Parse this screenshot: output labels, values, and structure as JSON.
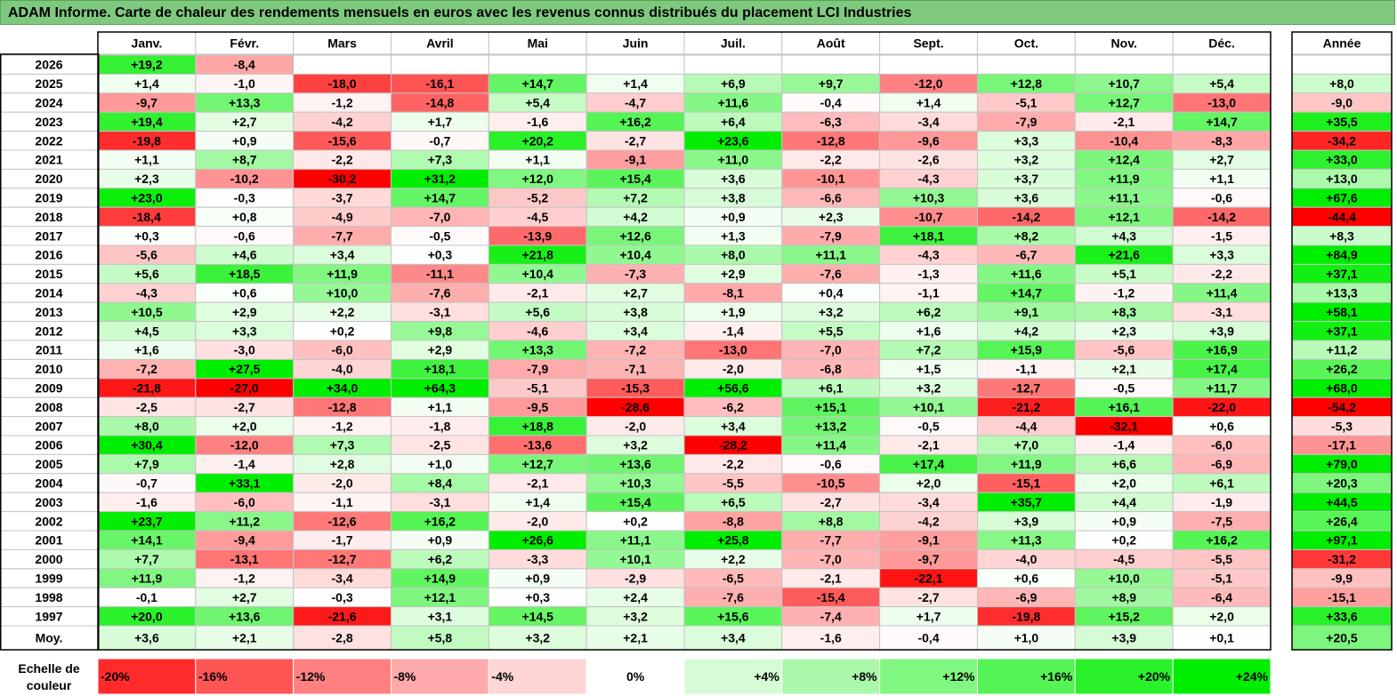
{
  "title": "ADAM Informe. Carte de chaleur des rendements mensuels en euros avec les revenus connus distribués du placement LCI Industries",
  "chart_data": {
    "type": "heatmap",
    "title": "ADAM Informe. Carte de chaleur des rendements mensuels en euros avec les revenus connus distribués du placement LCI Industries",
    "columns": [
      "Janv.",
      "Févr.",
      "Mars",
      "Avril",
      "Mai",
      "Juin",
      "Juil.",
      "Août",
      "Sept.",
      "Oct.",
      "Nov.",
      "Déc."
    ],
    "year_column": "Année",
    "rows": [
      {
        "label": "2026",
        "values": [
          "+19,2",
          "-8,4",
          "",
          "",
          "",
          "",
          "",
          "",
          "",
          "",
          "",
          ""
        ],
        "year": ""
      },
      {
        "label": "2025",
        "values": [
          "+1,4",
          "-1,0",
          "-18,0",
          "-16,1",
          "+14,7",
          "+1,4",
          "+6,9",
          "+9,7",
          "-12,0",
          "+12,8",
          "+10,7",
          "+5,4"
        ],
        "year": "+8,0"
      },
      {
        "label": "2024",
        "values": [
          "-9,7",
          "+13,3",
          "-1,2",
          "-14,8",
          "+5,4",
          "-4,7",
          "+11,6",
          "-0,4",
          "+1,4",
          "-5,1",
          "+12,7",
          "-13,0"
        ],
        "year": "-9,0"
      },
      {
        "label": "2023",
        "values": [
          "+19,4",
          "+2,7",
          "-4,2",
          "+1,7",
          "-1,6",
          "+16,2",
          "+6,4",
          "-6,3",
          "-3,4",
          "-7,9",
          "-2,1",
          "+14,7"
        ],
        "year": "+35,5"
      },
      {
        "label": "2022",
        "values": [
          "-19,8",
          "+0,9",
          "-15,6",
          "-0,7",
          "+20,2",
          "-2,7",
          "+23,6",
          "-12,8",
          "-9,6",
          "+3,3",
          "-10,4",
          "-8,3"
        ],
        "year": "-34,2"
      },
      {
        "label": "2021",
        "values": [
          "+1,1",
          "+8,7",
          "-2,2",
          "+7,3",
          "+1,1",
          "-9,1",
          "+11,0",
          "-2,2",
          "-2,6",
          "+3,2",
          "+12,4",
          "+2,7"
        ],
        "year": "+33,0"
      },
      {
        "label": "2020",
        "values": [
          "+2,3",
          "-10,2",
          "-30,2",
          "+31,2",
          "+12,0",
          "+15,4",
          "+3,6",
          "-10,1",
          "-4,3",
          "+3,7",
          "+11,9",
          "+1,1"
        ],
        "year": "+13,0"
      },
      {
        "label": "2019",
        "values": [
          "+23,0",
          "-0,3",
          "-3,7",
          "+14,7",
          "-5,2",
          "+7,2",
          "+3,8",
          "-6,6",
          "+10,3",
          "+3,6",
          "+11,1",
          "-0,6"
        ],
        "year": "+67,6"
      },
      {
        "label": "2018",
        "values": [
          "-18,4",
          "+0,8",
          "-4,9",
          "-7,0",
          "-4,5",
          "+4,2",
          "+0,9",
          "+2,3",
          "-10,7",
          "-14,2",
          "+12,1",
          "-14,2"
        ],
        "year": "-44,4"
      },
      {
        "label": "2017",
        "values": [
          "+0,3",
          "-0,6",
          "-7,7",
          "-0,5",
          "-13,9",
          "+12,6",
          "+1,3",
          "-7,9",
          "+18,1",
          "+8,2",
          "+4,3",
          "-1,5"
        ],
        "year": "+8,3"
      },
      {
        "label": "2016",
        "values": [
          "-5,6",
          "+4,6",
          "+3,4",
          "+0,3",
          "+21,8",
          "+10,4",
          "+8,0",
          "+11,1",
          "-4,3",
          "-6,7",
          "+21,6",
          "+3,3"
        ],
        "year": "+84,9"
      },
      {
        "label": "2015",
        "values": [
          "+5,6",
          "+18,5",
          "+11,9",
          "-11,1",
          "+10,4",
          "-7,3",
          "+2,9",
          "-7,6",
          "-1,3",
          "+11,6",
          "+5,1",
          "-2,2"
        ],
        "year": "+37,1"
      },
      {
        "label": "2014",
        "values": [
          "-4,3",
          "+0,6",
          "+10,0",
          "-7,6",
          "-2,1",
          "+2,7",
          "-8,1",
          "+0,4",
          "-1,1",
          "+14,7",
          "-1,2",
          "+11,4"
        ],
        "year": "+13,3"
      },
      {
        "label": "2013",
        "values": [
          "+10,5",
          "+2,9",
          "+2,2",
          "-3,1",
          "+5,6",
          "+3,8",
          "+1,9",
          "+3,2",
          "+6,2",
          "+9,1",
          "+8,3",
          "-3,1"
        ],
        "year": "+58,1"
      },
      {
        "label": "2012",
        "values": [
          "+4,5",
          "+3,3",
          "+0,2",
          "+9,8",
          "-4,6",
          "+3,4",
          "-1,4",
          "+5,5",
          "+1,6",
          "+4,2",
          "+2,3",
          "+3,9"
        ],
        "year": "+37,1"
      },
      {
        "label": "2011",
        "values": [
          "+1,6",
          "-3,0",
          "-6,0",
          "+2,9",
          "+13,3",
          "-7,2",
          "-13,0",
          "-7,0",
          "+7,2",
          "+15,9",
          "-5,6",
          "+16,9"
        ],
        "year": "+11,2"
      },
      {
        "label": "2010",
        "values": [
          "-7,2",
          "+27,5",
          "-4,0",
          "+18,1",
          "-7,9",
          "-7,1",
          "-2,0",
          "-6,8",
          "+1,5",
          "-1,1",
          "+2,1",
          "+17,4"
        ],
        "year": "+26,2"
      },
      {
        "label": "2009",
        "values": [
          "-21,8",
          "-27,0",
          "+34,0",
          "+64,3",
          "-5,1",
          "-15,3",
          "+56,6",
          "+6,1",
          "+3,2",
          "-12,7",
          "-0,5",
          "+11,7"
        ],
        "year": "+68,0"
      },
      {
        "label": "2008",
        "values": [
          "-2,5",
          "-2,7",
          "-12,8",
          "+1,1",
          "-9,5",
          "-28,6",
          "-6,2",
          "+15,1",
          "+10,1",
          "-21,2",
          "+16,1",
          "-22,0"
        ],
        "year": "-54,2"
      },
      {
        "label": "2007",
        "values": [
          "+8,0",
          "+2,0",
          "-1,2",
          "-1,8",
          "+18,8",
          "-2,0",
          "+3,4",
          "+13,2",
          "-0,5",
          "-4,4",
          "-32,1",
          "+0,6"
        ],
        "year": "-5,3"
      },
      {
        "label": "2006",
        "values": [
          "+30,4",
          "-12,0",
          "+7,3",
          "-2,5",
          "-13,6",
          "+3,2",
          "-28,2",
          "+11,4",
          "-2,1",
          "+7,0",
          "-1,4",
          "-6,0"
        ],
        "year": "-17,1"
      },
      {
        "label": "2005",
        "values": [
          "+7,9",
          "-1,4",
          "+2,8",
          "+1,0",
          "+12,7",
          "+13,6",
          "-2,2",
          "-0,6",
          "+17,4",
          "+11,9",
          "+6,6",
          "-6,9"
        ],
        "year": "+79,0"
      },
      {
        "label": "2004",
        "values": [
          "-0,7",
          "+33,1",
          "-2,0",
          "+8,4",
          "-2,1",
          "+10,3",
          "-5,5",
          "-10,5",
          "+2,0",
          "-15,1",
          "+2,0",
          "+6,1"
        ],
        "year": "+20,3"
      },
      {
        "label": "2003",
        "values": [
          "-1,6",
          "-6,0",
          "-1,1",
          "-3,1",
          "+1,4",
          "+15,4",
          "+6,5",
          "-2,7",
          "-3,4",
          "+35,7",
          "+4,4",
          "-1,9"
        ],
        "year": "+44,5"
      },
      {
        "label": "2002",
        "values": [
          "+23,7",
          "+11,2",
          "-12,6",
          "+16,2",
          "-2,0",
          "+0,2",
          "-8,8",
          "+8,8",
          "-4,2",
          "+3,9",
          "+0,9",
          "-7,5"
        ],
        "year": "+26,4"
      },
      {
        "label": "2001",
        "values": [
          "+14,1",
          "-9,4",
          "-1,7",
          "+0,9",
          "+26,6",
          "+11,1",
          "+25,8",
          "-7,7",
          "-9,1",
          "+11,3",
          "+0,2",
          "+16,2"
        ],
        "year": "+97,1"
      },
      {
        "label": "2000",
        "values": [
          "+7,7",
          "-13,1",
          "-12,7",
          "+6,2",
          "-3,3",
          "+10,1",
          "+2,2",
          "-7,0",
          "-9,7",
          "-4,0",
          "-4,5",
          "-5,5"
        ],
        "year": "-31,2"
      },
      {
        "label": "1999",
        "values": [
          "+11,9",
          "-1,2",
          "-3,4",
          "+14,9",
          "+0,9",
          "-2,9",
          "-6,5",
          "-2,1",
          "-22,1",
          "+0,6",
          "+10,0",
          "-5,1"
        ],
        "year": "-9,9"
      },
      {
        "label": "1998",
        "values": [
          "-0,1",
          "+2,7",
          "-0,3",
          "+12,1",
          "+0,3",
          "+2,4",
          "-7,6",
          "-15,4",
          "-2,7",
          "-6,9",
          "+8,9",
          "-6,4"
        ],
        "year": "-15,1"
      },
      {
        "label": "1997",
        "values": [
          "+20,0",
          "+13,6",
          "-21,6",
          "+3,1",
          "+14,5",
          "+3,2",
          "+15,6",
          "-7,4",
          "+1,7",
          "-19,8",
          "+15,2",
          "+2,0"
        ],
        "year": "+33,6"
      }
    ],
    "average_row": {
      "label": "Moy.",
      "values": [
        "+3,6",
        "+2,1",
        "-2,8",
        "+5,8",
        "+3,2",
        "+2,1",
        "+3,4",
        "-1,6",
        "-0,4",
        "+1,0",
        "+3,9",
        "+0,1"
      ],
      "year": "+20,5"
    },
    "scale": {
      "label": "Echelle de couleur",
      "steps": [
        {
          "label": "-20%",
          "value": -20
        },
        {
          "label": "-16%",
          "value": -16
        },
        {
          "label": "-12%",
          "value": -12
        },
        {
          "label": "-8%",
          "value": -8
        },
        {
          "label": "-4%",
          "value": -4
        },
        {
          "label": "0%",
          "value": 0
        },
        {
          "label": "+4%",
          "value": 4
        },
        {
          "label": "+8%",
          "value": 8
        },
        {
          "label": "+12%",
          "value": 12
        },
        {
          "label": "+16%",
          "value": 16
        },
        {
          "label": "+20%",
          "value": 20
        },
        {
          "label": "+24%",
          "value": 24
        }
      ]
    },
    "colors": {
      "negative_max": "#ff0000",
      "positive_max": "#00ee00",
      "neutral": "#ffffff",
      "title_bg": "#7ec97e",
      "grid": "#bdbdbd"
    }
  }
}
